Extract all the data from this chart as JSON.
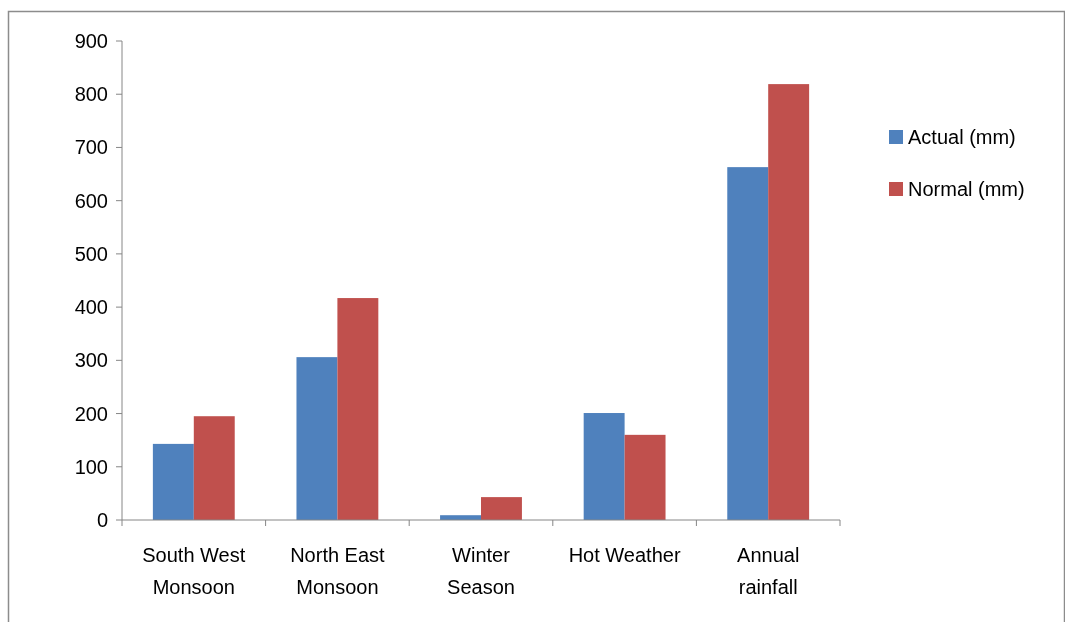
{
  "chart_data": {
    "type": "bar",
    "categories": [
      "South West Monsoon",
      "North East Monsoon",
      "Winter Season",
      "Hot Weather",
      "Annual rainfall"
    ],
    "series": [
      {
        "name": "Actual (mm)",
        "color": "#4f81bd",
        "values": [
          143,
          306,
          9,
          201,
          663
        ]
      },
      {
        "name": "Normal (mm)",
        "color": "#c0504d",
        "values": [
          195,
          417,
          43,
          160,
          819
        ]
      }
    ],
    "ylim": [
      0,
      900
    ],
    "yticks": [
      0,
      100,
      200,
      300,
      400,
      500,
      600,
      700,
      800,
      900
    ],
    "grid": false,
    "legend": "right"
  }
}
